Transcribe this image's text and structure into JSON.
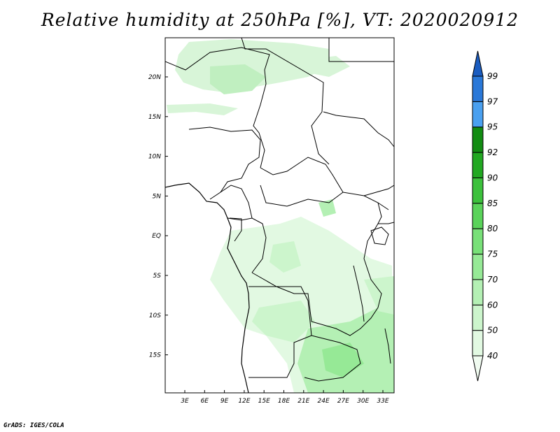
{
  "title": "Relative humidity at 250hPa [%], VT: 2020020912",
  "credit": "GrADS: IGES/COLA",
  "lat_ticks": [
    "20N",
    "15N",
    "10N",
    "5N",
    "EQ",
    "5S",
    "10S",
    "15S"
  ],
  "lon_ticks": [
    "3E",
    "6E",
    "9E",
    "12E",
    "15E",
    "18E",
    "21E",
    "24E",
    "27E",
    "30E",
    "33E"
  ],
  "colorbar": {
    "levels": [
      "40",
      "50",
      "60",
      "70",
      "75",
      "80",
      "85",
      "90",
      "92",
      "95",
      "97",
      "99"
    ],
    "colors": [
      "#f0fbf0",
      "#e2f9e2",
      "#ccf5cc",
      "#b4f0b4",
      "#96e996",
      "#78e078",
      "#5ad35a",
      "#3cc13c",
      "#22a822",
      "#128c12",
      "#4aa0f0",
      "#2a78d8",
      "#1a5cc0"
    ]
  }
}
